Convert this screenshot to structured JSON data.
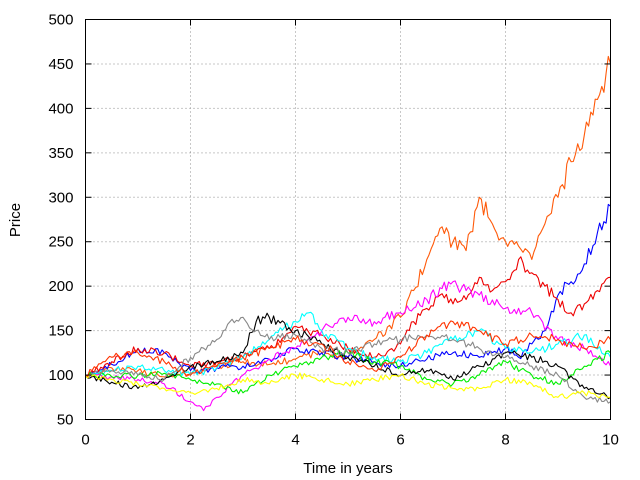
{
  "chart_data": {
    "type": "line",
    "xlabel": "Time in years",
    "ylabel": "Price",
    "xlim": [
      0,
      10
    ],
    "ylim": [
      50,
      500
    ],
    "xticks": [
      0,
      2,
      4,
      6,
      8,
      10
    ],
    "yticks": [
      50,
      100,
      150,
      200,
      250,
      300,
      350,
      400,
      450,
      500
    ],
    "grid": true,
    "legend": "none",
    "series": [
      {
        "color": "#ff5a0a",
        "x": [
          0,
          0.5,
          1,
          1.5,
          2,
          2.5,
          3,
          3.5,
          4,
          4.5,
          5,
          5.5,
          6,
          6.25,
          6.5,
          6.75,
          7,
          7.25,
          7.5,
          7.75,
          8,
          8.25,
          8.5,
          8.75,
          9,
          9.25,
          9.5,
          9.75,
          10
        ],
        "y": [
          100,
          108,
          105,
          98,
          102,
          110,
          115,
          112,
          118,
          125,
          120,
          140,
          165,
          195,
          230,
          265,
          250,
          240,
          300,
          270,
          250,
          245,
          230,
          270,
          300,
          340,
          370,
          410,
          450
        ]
      },
      {
        "color": "#0000ff",
        "x": [
          0,
          0.5,
          1,
          1.5,
          2,
          2.5,
          3,
          3.5,
          4,
          4.5,
          5,
          5.5,
          6,
          6.5,
          7,
          7.5,
          8,
          8.25,
          8.5,
          8.75,
          9,
          9.25,
          9.5,
          9.75,
          10
        ],
        "y": [
          100,
          112,
          130,
          125,
          105,
          108,
          110,
          118,
          130,
          125,
          120,
          115,
          110,
          118,
          125,
          120,
          130,
          120,
          135,
          150,
          190,
          205,
          225,
          260,
          290
        ]
      },
      {
        "color": "#ee0000",
        "x": [
          0,
          0.5,
          1,
          1.5,
          2,
          2.5,
          3,
          3.5,
          4,
          4.5,
          5,
          5.5,
          6,
          6.25,
          6.5,
          6.75,
          7,
          7.25,
          7.5,
          7.75,
          8,
          8.25,
          8.5,
          8.75,
          9,
          9.25,
          9.5,
          9.75,
          10
        ],
        "y": [
          100,
          115,
          130,
          125,
          110,
          115,
          120,
          130,
          155,
          145,
          130,
          120,
          135,
          160,
          175,
          190,
          180,
          185,
          210,
          195,
          205,
          230,
          215,
          200,
          185,
          170,
          180,
          195,
          210
        ]
      },
      {
        "color": "#ff00ff",
        "x": [
          0,
          0.5,
          1,
          1.5,
          2,
          2.25,
          2.5,
          3,
          3.5,
          4,
          4.5,
          5,
          5.5,
          6,
          6.5,
          7,
          7.25,
          7.5,
          8,
          8.5,
          9,
          9.5,
          10
        ],
        "y": [
          100,
          98,
          95,
          90,
          70,
          60,
          75,
          100,
          118,
          130,
          150,
          165,
          160,
          170,
          185,
          205,
          195,
          190,
          175,
          170,
          140,
          130,
          110
        ]
      },
      {
        "color": "#00ffff",
        "x": [
          0,
          0.5,
          1,
          1.5,
          2,
          2.5,
          3,
          3.5,
          4,
          4.25,
          4.5,
          5,
          5.5,
          6,
          6.5,
          7,
          7.5,
          8,
          8.5,
          9,
          9.5,
          10
        ],
        "y": [
          100,
          105,
          110,
          105,
          100,
          108,
          120,
          140,
          160,
          170,
          150,
          130,
          120,
          115,
          125,
          140,
          150,
          130,
          125,
          135,
          145,
          120
        ]
      },
      {
        "color": "#00ee00",
        "x": [
          0,
          0.5,
          1,
          1.5,
          2,
          2.5,
          3,
          3.5,
          4,
          4.5,
          5,
          5.5,
          6,
          6.5,
          7,
          7.5,
          8,
          8.5,
          9,
          9.5,
          10
        ],
        "y": [
          100,
          98,
          100,
          102,
          95,
          90,
          80,
          100,
          110,
          120,
          125,
          115,
          110,
          95,
          90,
          100,
          115,
          100,
          90,
          110,
          125
        ]
      },
      {
        "color": "#000000",
        "x": [
          0,
          0.5,
          1,
          1.5,
          2,
          2.5,
          3,
          3.25,
          3.5,
          4,
          4.5,
          5,
          5.5,
          6,
          6.5,
          7,
          7.5,
          8,
          8.5,
          9,
          9.5,
          10
        ],
        "y": [
          100,
          92,
          85,
          95,
          110,
          115,
          125,
          160,
          165,
          150,
          135,
          120,
          110,
          100,
          105,
          95,
          110,
          125,
          120,
          110,
          85,
          75
        ]
      },
      {
        "color": "#888888",
        "x": [
          0,
          0.5,
          1,
          1.5,
          2,
          2.5,
          2.75,
          3,
          3.25,
          3.5,
          4,
          4.5,
          5,
          5.5,
          6,
          6.5,
          7,
          7.5,
          8,
          8.5,
          9,
          9.5,
          10
        ],
        "y": [
          100,
          105,
          100,
          95,
          120,
          140,
          160,
          165,
          150,
          140,
          145,
          130,
          125,
          135,
          140,
          145,
          140,
          130,
          120,
          110,
          100,
          75,
          70
        ]
      },
      {
        "color": "#ffff00",
        "x": [
          0,
          0.5,
          1,
          1.5,
          2,
          2.5,
          3,
          3.5,
          4,
          4.5,
          5,
          5.5,
          6,
          6.5,
          7,
          7.5,
          8,
          8.5,
          9,
          9.5,
          10
        ],
        "y": [
          100,
          95,
          90,
          85,
          80,
          85,
          95,
          90,
          100,
          95,
          90,
          95,
          100,
          90,
          85,
          85,
          95,
          90,
          75,
          80,
          75
        ]
      },
      {
        "color": "#ff3300",
        "x": [
          0,
          0.5,
          1,
          1.5,
          2,
          2.5,
          3,
          3.5,
          4,
          4.5,
          5,
          5.5,
          6,
          6.5,
          7,
          7.5,
          8,
          8.5,
          9,
          9.5,
          10
        ],
        "y": [
          100,
          120,
          125,
          115,
          100,
          110,
          120,
          130,
          140,
          135,
          115,
          105,
          120,
          145,
          160,
          150,
          135,
          145,
          140,
          130,
          140
        ]
      }
    ]
  }
}
